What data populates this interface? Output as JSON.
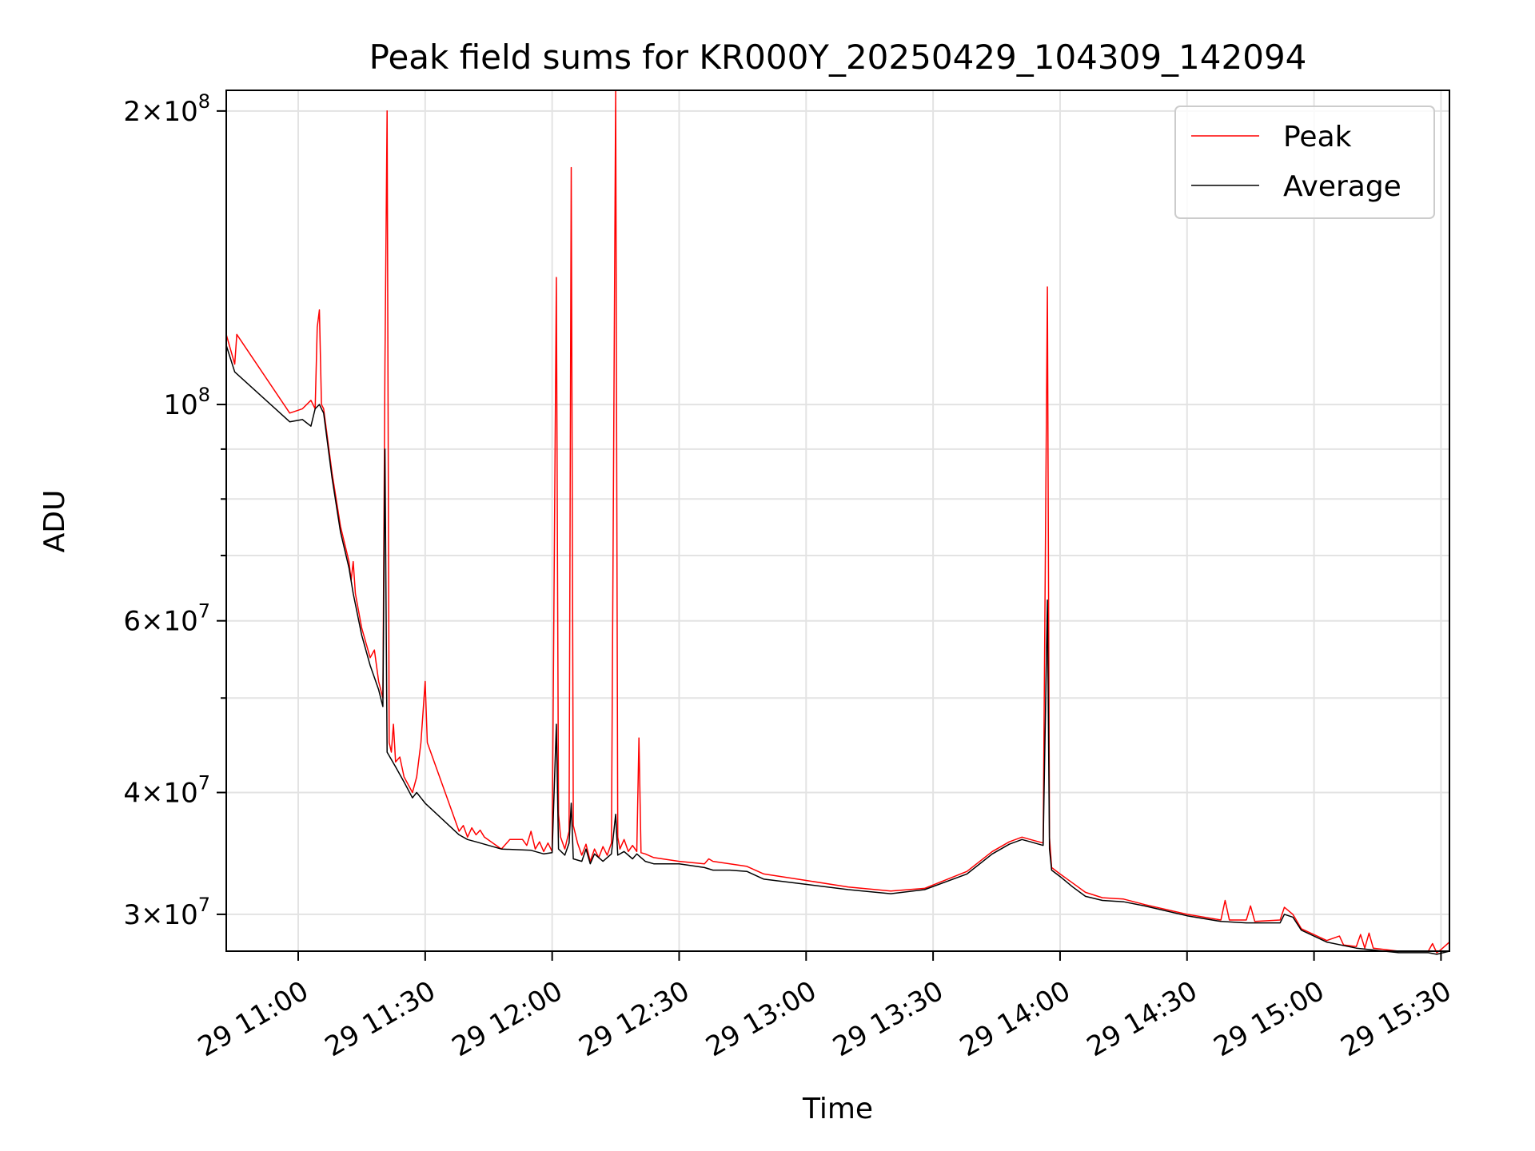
{
  "chart_data": {
    "type": "line",
    "title": "Peak field sums for KR000Y_20250429_104309_142094",
    "xlabel": "Time",
    "ylabel": "ADU",
    "yscale": "log",
    "xlim": [
      "2025-04-29 10:43",
      "2025-04-29 15:32"
    ],
    "ylim": [
      27500000,
      210000000
    ],
    "x_ticks": [
      {
        "t": "2025-04-29 11:00",
        "label": "29 11:00"
      },
      {
        "t": "2025-04-29 11:30",
        "label": "29 11:30"
      },
      {
        "t": "2025-04-29 12:00",
        "label": "29 12:00"
      },
      {
        "t": "2025-04-29 12:30",
        "label": "29 12:30"
      },
      {
        "t": "2025-04-29 13:00",
        "label": "29 13:00"
      },
      {
        "t": "2025-04-29 13:30",
        "label": "29 13:30"
      },
      {
        "t": "2025-04-29 14:00",
        "label": "29 14:00"
      },
      {
        "t": "2025-04-29 14:30",
        "label": "29 14:30"
      },
      {
        "t": "2025-04-29 15:00",
        "label": "29 15:00"
      },
      {
        "t": "2025-04-29 15:30",
        "label": "29 15:30"
      }
    ],
    "y_ticks_major": [
      {
        "v": 30000000,
        "mant": "3",
        "exp": "7"
      },
      {
        "v": 40000000,
        "mant": "4",
        "exp": "7"
      },
      {
        "v": 60000000,
        "mant": "6",
        "exp": "7"
      },
      {
        "v": 100000000,
        "mant": "",
        "exp": "8"
      },
      {
        "v": 200000000,
        "mant": "2",
        "exp": "8"
      }
    ],
    "y_ticks_minor": [
      50000000,
      70000000,
      80000000,
      90000000
    ],
    "grid": true,
    "legend": "top-right",
    "series": [
      {
        "name": "Peak",
        "color": "#ff0000",
        "points": [
          [
            "2025-04-29 10:43",
            118000000
          ],
          [
            "2025-04-29 10:45",
            110000000
          ],
          [
            "2025-04-29 10:45:30",
            118000000
          ],
          [
            "2025-04-29 10:58",
            98000000
          ],
          [
            "2025-04-29 11:01",
            99000000
          ],
          [
            "2025-04-29 11:03",
            101000000
          ],
          [
            "2025-04-29 11:04",
            99000000
          ],
          [
            "2025-04-29 11:04:30",
            120000000
          ],
          [
            "2025-04-29 11:05",
            125000000
          ],
          [
            "2025-04-29 11:05:30",
            100000000
          ],
          [
            "2025-04-29 11:06",
            99000000
          ],
          [
            "2025-04-29 11:08",
            85000000
          ],
          [
            "2025-04-29 11:10",
            75000000
          ],
          [
            "2025-04-29 11:12",
            69000000
          ],
          [
            "2025-04-29 11:12:30",
            66000000
          ],
          [
            "2025-04-29 11:13",
            69000000
          ],
          [
            "2025-04-29 11:13:30",
            64000000
          ],
          [
            "2025-04-29 11:15",
            59000000
          ],
          [
            "2025-04-29 11:17",
            55000000
          ],
          [
            "2025-04-29 11:18",
            56000000
          ],
          [
            "2025-04-29 11:19",
            52000000
          ],
          [
            "2025-04-29 11:20",
            50000000
          ],
          [
            "2025-04-29 11:20:30",
            110000000
          ],
          [
            "2025-04-29 11:21",
            200000000
          ],
          [
            "2025-04-29 11:21:30",
            45000000
          ],
          [
            "2025-04-29 11:22",
            44000000
          ],
          [
            "2025-04-29 11:22:30",
            47000000
          ],
          [
            "2025-04-29 11:23",
            43000000
          ],
          [
            "2025-04-29 11:24",
            43500000
          ],
          [
            "2025-04-29 11:25",
            41500000
          ],
          [
            "2025-04-29 11:27",
            40000000
          ],
          [
            "2025-04-29 11:28",
            41500000
          ],
          [
            "2025-04-29 11:29",
            45000000
          ],
          [
            "2025-04-29 11:30",
            52000000
          ],
          [
            "2025-04-29 11:30:30",
            45000000
          ],
          [
            "2025-04-29 11:38",
            36500000
          ],
          [
            "2025-04-29 11:39",
            37000000
          ],
          [
            "2025-04-29 11:40",
            36000000
          ],
          [
            "2025-04-29 11:41",
            36800000
          ],
          [
            "2025-04-29 11:42",
            36200000
          ],
          [
            "2025-04-29 11:43",
            36600000
          ],
          [
            "2025-04-29 11:44",
            36000000
          ],
          [
            "2025-04-29 11:48",
            35000000
          ],
          [
            "2025-04-29 11:50",
            35800000
          ],
          [
            "2025-04-29 11:53",
            35800000
          ],
          [
            "2025-04-29 11:54",
            35300000
          ],
          [
            "2025-04-29 11:55",
            36500000
          ],
          [
            "2025-04-29 11:56",
            35000000
          ],
          [
            "2025-04-29 11:57",
            35600000
          ],
          [
            "2025-04-29 11:58",
            34800000
          ],
          [
            "2025-04-29 11:59",
            35500000
          ],
          [
            "2025-04-29 12:00",
            34800000
          ],
          [
            "2025-04-29 12:01",
            135000000
          ],
          [
            "2025-04-29 12:01:30",
            38000000
          ],
          [
            "2025-04-29 12:02",
            36000000
          ],
          [
            "2025-04-29 12:03",
            35000000
          ],
          [
            "2025-04-29 12:04",
            36500000
          ],
          [
            "2025-04-29 12:04:30",
            175000000
          ],
          [
            "2025-04-29 12:05",
            37000000
          ],
          [
            "2025-04-29 12:06",
            35500000
          ],
          [
            "2025-04-29 12:07",
            34500000
          ],
          [
            "2025-04-29 12:08",
            35400000
          ],
          [
            "2025-04-29 12:09",
            34000000
          ],
          [
            "2025-04-29 12:10",
            35000000
          ],
          [
            "2025-04-29 12:11",
            34300000
          ],
          [
            "2025-04-29 12:12",
            35200000
          ],
          [
            "2025-04-29 12:13",
            34500000
          ],
          [
            "2025-04-29 12:14",
            35500000
          ],
          [
            "2025-04-29 12:15",
            210000000
          ],
          [
            "2025-04-29 12:15:30",
            36000000
          ],
          [
            "2025-04-29 12:16",
            35000000
          ],
          [
            "2025-04-29 12:17",
            35800000
          ],
          [
            "2025-04-29 12:18",
            34800000
          ],
          [
            "2025-04-29 12:19",
            35300000
          ],
          [
            "2025-04-29 12:20",
            34800000
          ],
          [
            "2025-04-29 12:20:30",
            45500000
          ],
          [
            "2025-04-29 12:21",
            34700000
          ],
          [
            "2025-04-29 12:22",
            34600000
          ],
          [
            "2025-04-29 12:24",
            34300000
          ],
          [
            "2025-04-29 12:30",
            34000000
          ],
          [
            "2025-04-29 12:36",
            33800000
          ],
          [
            "2025-04-29 12:37",
            34200000
          ],
          [
            "2025-04-29 12:38",
            34000000
          ],
          [
            "2025-04-29 12:42",
            33800000
          ],
          [
            "2025-04-29 12:46",
            33600000
          ],
          [
            "2025-04-29 12:50",
            33000000
          ],
          [
            "2025-04-29 13:00",
            32500000
          ],
          [
            "2025-04-29 13:10",
            32000000
          ],
          [
            "2025-04-29 13:20",
            31700000
          ],
          [
            "2025-04-29 13:28",
            31900000
          ],
          [
            "2025-04-29 13:38",
            33200000
          ],
          [
            "2025-04-29 13:44",
            34800000
          ],
          [
            "2025-04-29 13:48",
            35600000
          ],
          [
            "2025-04-29 13:51",
            36000000
          ],
          [
            "2025-04-29 13:53",
            35800000
          ],
          [
            "2025-04-29 13:56",
            35500000
          ],
          [
            "2025-04-29 13:57",
            132000000
          ],
          [
            "2025-04-29 13:57:30",
            36000000
          ],
          [
            "2025-04-29 13:58",
            33500000
          ],
          [
            "2025-04-29 14:00",
            33000000
          ],
          [
            "2025-04-29 14:03",
            32300000
          ],
          [
            "2025-04-29 14:06",
            31600000
          ],
          [
            "2025-04-29 14:10",
            31200000
          ],
          [
            "2025-04-29 14:15",
            31100000
          ],
          [
            "2025-04-29 14:20",
            30700000
          ],
          [
            "2025-04-29 14:30",
            30000000
          ],
          [
            "2025-04-29 14:38",
            29600000
          ],
          [
            "2025-04-29 14:39",
            31000000
          ],
          [
            "2025-04-29 14:40",
            29600000
          ],
          [
            "2025-04-29 14:44",
            29600000
          ],
          [
            "2025-04-29 14:45",
            30600000
          ],
          [
            "2025-04-29 14:46",
            29500000
          ],
          [
            "2025-04-29 14:52",
            29600000
          ],
          [
            "2025-04-29 14:53",
            30500000
          ],
          [
            "2025-04-29 14:55",
            30000000
          ],
          [
            "2025-04-29 14:56",
            29500000
          ],
          [
            "2025-04-29 14:57",
            29000000
          ],
          [
            "2025-04-29 15:03",
            28200000
          ],
          [
            "2025-04-29 15:06",
            28500000
          ],
          [
            "2025-04-29 15:07",
            27900000
          ],
          [
            "2025-04-29 15:10",
            27800000
          ],
          [
            "2025-04-29 15:11",
            28600000
          ],
          [
            "2025-04-29 15:12",
            27700000
          ],
          [
            "2025-04-29 15:13",
            28700000
          ],
          [
            "2025-04-29 15:14",
            27700000
          ],
          [
            "2025-04-29 15:20",
            27500000
          ],
          [
            "2025-04-29 15:27",
            27500000
          ],
          [
            "2025-04-29 15:28",
            28000000
          ],
          [
            "2025-04-29 15:29",
            27400000
          ],
          [
            "2025-04-29 15:30",
            27600000
          ],
          [
            "2025-04-29 15:32",
            28100000
          ]
        ]
      },
      {
        "name": "Average",
        "color": "#000000",
        "points": [
          [
            "2025-04-29 10:43",
            115000000
          ],
          [
            "2025-04-29 10:45",
            108000000
          ],
          [
            "2025-04-29 10:58",
            96000000
          ],
          [
            "2025-04-29 11:01",
            96500000
          ],
          [
            "2025-04-29 11:03",
            95000000
          ],
          [
            "2025-04-29 11:04",
            99000000
          ],
          [
            "2025-04-29 11:05",
            100000000
          ],
          [
            "2025-04-29 11:06",
            98000000
          ],
          [
            "2025-04-29 11:08",
            84000000
          ],
          [
            "2025-04-29 11:10",
            74000000
          ],
          [
            "2025-04-29 11:12",
            68000000
          ],
          [
            "2025-04-29 11:13",
            64000000
          ],
          [
            "2025-04-29 11:15",
            58000000
          ],
          [
            "2025-04-29 11:17",
            54000000
          ],
          [
            "2025-04-29 11:19",
            51000000
          ],
          [
            "2025-04-29 11:20",
            49000000
          ],
          [
            "2025-04-29 11:20:30",
            90000000
          ],
          [
            "2025-04-29 11:21",
            44000000
          ],
          [
            "2025-04-29 11:23",
            42500000
          ],
          [
            "2025-04-29 11:25",
            41000000
          ],
          [
            "2025-04-29 11:27",
            39500000
          ],
          [
            "2025-04-29 11:28",
            40000000
          ],
          [
            "2025-04-29 11:29",
            39500000
          ],
          [
            "2025-04-29 11:30",
            39000000
          ],
          [
            "2025-04-29 11:38",
            36200000
          ],
          [
            "2025-04-29 11:40",
            35800000
          ],
          [
            "2025-04-29 11:42",
            35600000
          ],
          [
            "2025-04-29 11:45",
            35300000
          ],
          [
            "2025-04-29 11:48",
            35000000
          ],
          [
            "2025-04-29 11:55",
            34900000
          ],
          [
            "2025-04-29 11:58",
            34600000
          ],
          [
            "2025-04-29 12:00",
            34700000
          ],
          [
            "2025-04-29 12:01",
            47000000
          ],
          [
            "2025-04-29 12:01:30",
            35000000
          ],
          [
            "2025-04-29 12:03",
            34500000
          ],
          [
            "2025-04-29 12:04",
            35500000
          ],
          [
            "2025-04-29 12:04:30",
            39000000
          ],
          [
            "2025-04-29 12:05",
            34200000
          ],
          [
            "2025-04-29 12:07",
            34000000
          ],
          [
            "2025-04-29 12:08",
            35000000
          ],
          [
            "2025-04-29 12:09",
            33800000
          ],
          [
            "2025-04-29 12:10",
            34600000
          ],
          [
            "2025-04-29 12:12",
            34000000
          ],
          [
            "2025-04-29 12:14",
            34600000
          ],
          [
            "2025-04-29 12:15",
            38000000
          ],
          [
            "2025-04-29 12:15:30",
            34500000
          ],
          [
            "2025-04-29 12:17",
            34800000
          ],
          [
            "2025-04-29 12:19",
            34200000
          ],
          [
            "2025-04-29 12:20",
            34600000
          ],
          [
            "2025-04-29 12:22",
            34000000
          ],
          [
            "2025-04-29 12:24",
            33800000
          ],
          [
            "2025-04-29 12:30",
            33800000
          ],
          [
            "2025-04-29 12:36",
            33500000
          ],
          [
            "2025-04-29 12:38",
            33300000
          ],
          [
            "2025-04-29 12:42",
            33300000
          ],
          [
            "2025-04-29 12:46",
            33200000
          ],
          [
            "2025-04-29 12:50",
            32600000
          ],
          [
            "2025-04-29 13:00",
            32200000
          ],
          [
            "2025-04-29 13:10",
            31800000
          ],
          [
            "2025-04-29 13:20",
            31500000
          ],
          [
            "2025-04-29 13:28",
            31800000
          ],
          [
            "2025-04-29 13:38",
            33000000
          ],
          [
            "2025-04-29 13:44",
            34600000
          ],
          [
            "2025-04-29 13:48",
            35400000
          ],
          [
            "2025-04-29 13:51",
            35800000
          ],
          [
            "2025-04-29 13:53",
            35600000
          ],
          [
            "2025-04-29 13:56",
            35300000
          ],
          [
            "2025-04-29 13:57",
            63000000
          ],
          [
            "2025-04-29 13:57:30",
            35000000
          ],
          [
            "2025-04-29 13:58",
            33300000
          ],
          [
            "2025-04-29 14:00",
            32800000
          ],
          [
            "2025-04-29 14:03",
            32000000
          ],
          [
            "2025-04-29 14:06",
            31300000
          ],
          [
            "2025-04-29 14:10",
            31000000
          ],
          [
            "2025-04-29 14:15",
            30900000
          ],
          [
            "2025-04-29 14:20",
            30600000
          ],
          [
            "2025-04-29 14:30",
            29900000
          ],
          [
            "2025-04-29 14:38",
            29500000
          ],
          [
            "2025-04-29 14:44",
            29400000
          ],
          [
            "2025-04-29 14:52",
            29400000
          ],
          [
            "2025-04-29 14:53",
            30000000
          ],
          [
            "2025-04-29 14:55",
            29800000
          ],
          [
            "2025-04-29 14:57",
            28900000
          ],
          [
            "2025-04-29 15:03",
            28100000
          ],
          [
            "2025-04-29 15:10",
            27700000
          ],
          [
            "2025-04-29 15:20",
            27400000
          ],
          [
            "2025-04-29 15:27",
            27400000
          ],
          [
            "2025-04-29 15:29",
            27300000
          ],
          [
            "2025-04-29 15:32",
            27500000
          ]
        ]
      }
    ]
  }
}
